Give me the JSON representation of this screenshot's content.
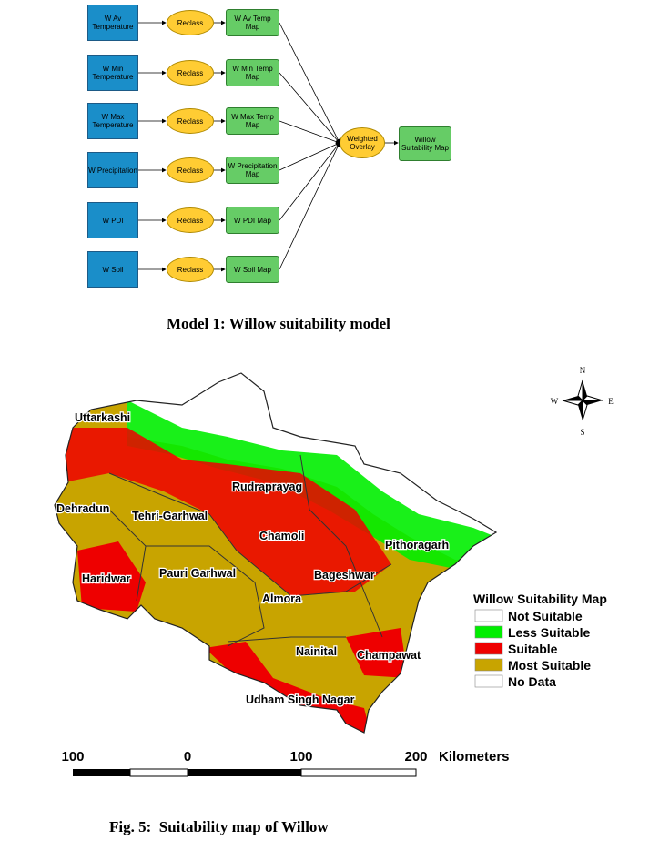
{
  "model": {
    "inputs": [
      "W Av Temperature",
      "W Min Temperature",
      "W Max Temperature",
      "W Precipitation",
      "W PDI",
      "W Soil"
    ],
    "reclass": [
      "Reclass",
      "Reclass",
      "Reclass",
      "Reclass",
      "Reclass",
      "Reclass"
    ],
    "maps": [
      "W Av Temp Map",
      "W Min Temp Map",
      "W Max Temp Map",
      "W Precipitation Map",
      "W PDI Map",
      "W Soil Map"
    ],
    "overlay": "Weighted Overlay",
    "output": "Willow Suitability Map",
    "caption": "Model 1: Willow suitability model"
  },
  "map": {
    "compass": {
      "n": "N",
      "e": "E",
      "s": "S",
      "w": "W"
    },
    "districts": [
      "Uttarkashi",
      "Dehradun",
      "Tehri-Garhwal",
      "Rudraprayag",
      "Chamoli",
      "Pithoragarh",
      "Haridwar",
      "Pauri Garhwal",
      "Bageshwar",
      "Almora",
      "Nainital",
      "Champawat",
      "Udham Singh Nagar"
    ],
    "legend": {
      "title": "Willow Suitability Map",
      "items": [
        {
          "label": "Not Suitable",
          "color": "#ffffff"
        },
        {
          "label": "Less Suitable",
          "color": "#00ee00"
        },
        {
          "label": "Suitable",
          "color": "#ee0000"
        },
        {
          "label": "Most Suitable",
          "color": "#c8a400"
        },
        {
          "label": "No Data",
          "color": "#ffffff"
        }
      ]
    },
    "scale": {
      "labels": [
        "100",
        "0",
        "100",
        "200"
      ],
      "unit": "Kilometers"
    },
    "caption": "Fig. 5:  Suitability map of Willow"
  }
}
